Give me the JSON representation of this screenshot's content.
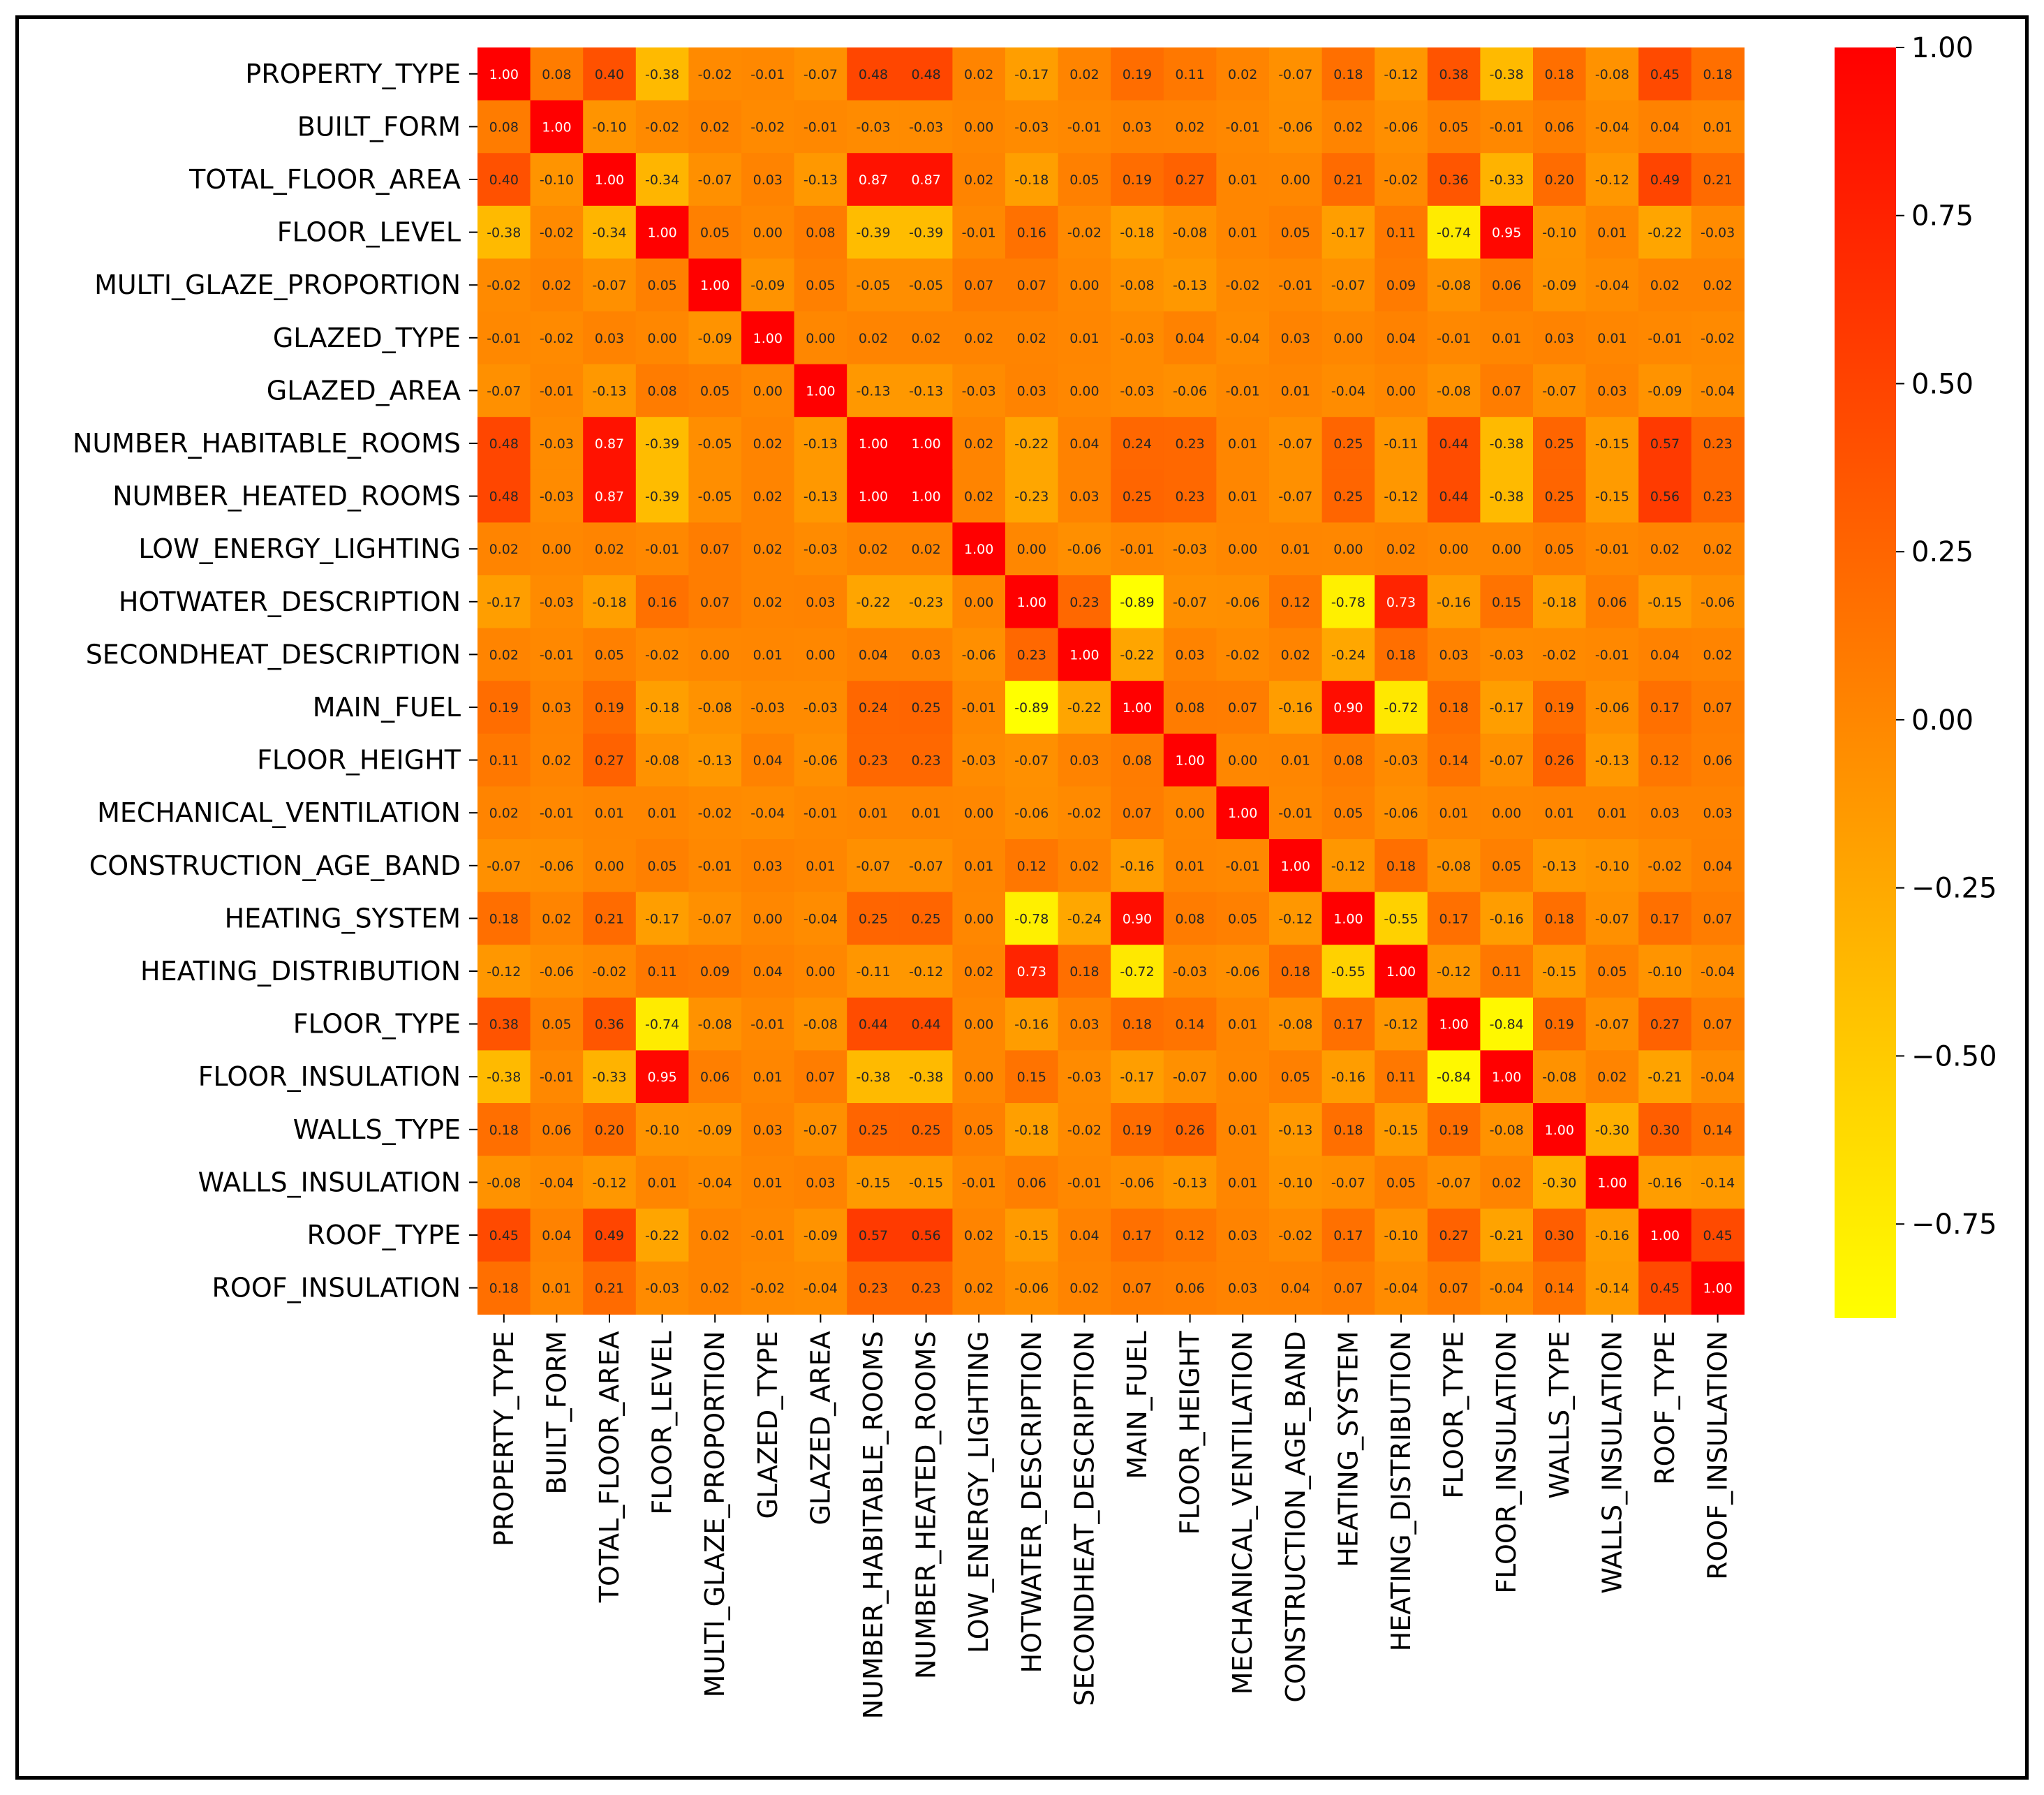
{
  "chart_data": {
    "type": "heatmap",
    "title": "",
    "xlabel": "",
    "ylabel": "",
    "labels": [
      "PROPERTY_TYPE",
      "BUILT_FORM",
      "TOTAL_FLOOR_AREA",
      "FLOOR_LEVEL",
      "MULTI_GLAZE_PROPORTION",
      "GLAZED_TYPE",
      "GLAZED_AREA",
      "NUMBER_HABITABLE_ROOMS",
      "NUMBER_HEATED_ROOMS",
      "LOW_ENERGY_LIGHTING",
      "HOTWATER_DESCRIPTION",
      "SECONDHEAT_DESCRIPTION",
      "MAIN_FUEL",
      "FLOOR_HEIGHT",
      "MECHANICAL_VENTILATION",
      "CONSTRUCTION_AGE_BAND",
      "HEATING_SYSTEM",
      "HEATING_DISTRIBUTION",
      "FLOOR_TYPE",
      "FLOOR_INSULATION",
      "WALLS_TYPE",
      "WALLS_INSULATION",
      "ROOF_TYPE",
      "ROOF_INSULATION"
    ],
    "values": [
      [
        1.0,
        0.08,
        0.4,
        -0.38,
        -0.02,
        -0.01,
        -0.07,
        0.48,
        0.48,
        0.02,
        -0.17,
        0.02,
        0.19,
        0.11,
        0.02,
        -0.07,
        0.18,
        -0.12,
        0.38,
        -0.38,
        0.18,
        -0.08,
        0.45,
        0.18
      ],
      [
        0.08,
        1.0,
        -0.1,
        -0.02,
        0.02,
        -0.02,
        -0.01,
        -0.03,
        -0.03,
        0.0,
        -0.03,
        -0.01,
        0.03,
        0.02,
        -0.01,
        -0.06,
        0.02,
        -0.06,
        0.05,
        -0.01,
        0.06,
        -0.04,
        0.04,
        0.01
      ],
      [
        0.4,
        -0.1,
        1.0,
        -0.34,
        -0.07,
        0.03,
        -0.13,
        0.87,
        0.87,
        0.02,
        -0.18,
        0.05,
        0.19,
        0.27,
        0.01,
        0.0,
        0.21,
        -0.02,
        0.36,
        -0.33,
        0.2,
        -0.12,
        0.49,
        0.21
      ],
      [
        -0.38,
        -0.02,
        -0.34,
        1.0,
        0.05,
        0.0,
        0.08,
        -0.39,
        -0.39,
        -0.01,
        0.16,
        -0.02,
        -0.18,
        -0.08,
        0.01,
        0.05,
        -0.17,
        0.11,
        -0.74,
        0.95,
        -0.1,
        0.01,
        -0.22,
        -0.03
      ],
      [
        -0.02,
        0.02,
        -0.07,
        0.05,
        1.0,
        -0.09,
        0.05,
        -0.05,
        -0.05,
        0.07,
        0.07,
        0.0,
        -0.08,
        -0.13,
        -0.02,
        -0.01,
        -0.07,
        0.09,
        -0.08,
        0.06,
        -0.09,
        -0.04,
        0.02,
        0.02
      ],
      [
        -0.01,
        -0.02,
        0.03,
        0.0,
        -0.09,
        1.0,
        -0.0,
        0.02,
        0.02,
        0.02,
        0.02,
        0.01,
        -0.03,
        0.04,
        -0.04,
        0.03,
        -0.0,
        0.04,
        -0.01,
        0.01,
        0.03,
        0.01,
        -0.01,
        -0.02
      ],
      [
        -0.07,
        -0.01,
        -0.13,
        0.08,
        0.05,
        -0.0,
        1.0,
        -0.13,
        -0.13,
        -0.03,
        0.03,
        -0.0,
        -0.03,
        -0.06,
        -0.01,
        0.01,
        -0.04,
        -0.0,
        -0.08,
        0.07,
        -0.07,
        0.03,
        -0.09,
        -0.04
      ],
      [
        0.48,
        -0.03,
        0.87,
        -0.39,
        -0.05,
        0.02,
        -0.13,
        1.0,
        1.0,
        0.02,
        -0.22,
        0.04,
        0.24,
        0.23,
        0.01,
        -0.07,
        0.25,
        -0.11,
        0.44,
        -0.38,
        0.25,
        -0.15,
        0.57,
        0.23
      ],
      [
        0.48,
        -0.03,
        0.87,
        -0.39,
        -0.05,
        0.02,
        -0.13,
        1.0,
        1.0,
        0.02,
        -0.23,
        0.03,
        0.25,
        0.23,
        0.01,
        -0.07,
        0.25,
        -0.12,
        0.44,
        -0.38,
        0.25,
        -0.15,
        0.56,
        0.23
      ],
      [
        0.02,
        0.0,
        0.02,
        -0.01,
        0.07,
        0.02,
        -0.03,
        0.02,
        0.02,
        1.0,
        -0.0,
        -0.06,
        -0.01,
        -0.03,
        0.0,
        0.01,
        0.0,
        0.02,
        0.0,
        0.0,
        0.05,
        -0.01,
        0.02,
        0.02
      ],
      [
        -0.17,
        -0.03,
        -0.18,
        0.16,
        0.07,
        0.02,
        0.03,
        -0.22,
        -0.23,
        -0.0,
        1.0,
        0.23,
        -0.89,
        -0.07,
        -0.06,
        0.12,
        -0.78,
        0.73,
        -0.16,
        0.15,
        -0.18,
        0.06,
        -0.15,
        -0.06
      ],
      [
        0.02,
        -0.01,
        0.05,
        -0.02,
        0.0,
        0.01,
        -0.0,
        0.04,
        0.03,
        -0.06,
        0.23,
        1.0,
        -0.22,
        0.03,
        -0.02,
        0.02,
        -0.24,
        0.18,
        0.03,
        -0.03,
        -0.02,
        -0.01,
        0.04,
        0.02
      ],
      [
        0.19,
        0.03,
        0.19,
        -0.18,
        -0.08,
        -0.03,
        -0.03,
        0.24,
        0.25,
        -0.01,
        -0.89,
        -0.22,
        1.0,
        0.08,
        0.07,
        -0.16,
        0.9,
        -0.72,
        0.18,
        -0.17,
        0.19,
        -0.06,
        0.17,
        0.07
      ],
      [
        0.11,
        0.02,
        0.27,
        -0.08,
        -0.13,
        0.04,
        -0.06,
        0.23,
        0.23,
        -0.03,
        -0.07,
        0.03,
        0.08,
        1.0,
        -0.0,
        0.01,
        0.08,
        -0.03,
        0.14,
        -0.07,
        0.26,
        -0.13,
        0.12,
        0.06
      ],
      [
        0.02,
        -0.01,
        0.01,
        0.01,
        -0.02,
        -0.04,
        -0.01,
        0.01,
        0.01,
        0.0,
        -0.06,
        -0.02,
        0.07,
        -0.0,
        1.0,
        -0.01,
        0.05,
        -0.06,
        0.01,
        0.0,
        0.01,
        0.01,
        0.03,
        0.03
      ],
      [
        -0.07,
        -0.06,
        0.0,
        0.05,
        -0.01,
        0.03,
        0.01,
        -0.07,
        -0.07,
        0.01,
        0.12,
        0.02,
        -0.16,
        0.01,
        -0.01,
        1.0,
        -0.12,
        0.18,
        -0.08,
        0.05,
        -0.13,
        -0.1,
        -0.02,
        0.04
      ],
      [
        0.18,
        0.02,
        0.21,
        -0.17,
        -0.07,
        -0.0,
        -0.04,
        0.25,
        0.25,
        0.0,
        -0.78,
        -0.24,
        0.9,
        0.08,
        0.05,
        -0.12,
        1.0,
        -0.55,
        0.17,
        -0.16,
        0.18,
        -0.07,
        0.17,
        0.07
      ],
      [
        -0.12,
        -0.06,
        -0.02,
        0.11,
        0.09,
        0.04,
        -0.0,
        -0.11,
        -0.12,
        0.02,
        0.73,
        0.18,
        -0.72,
        -0.03,
        -0.06,
        0.18,
        -0.55,
        1.0,
        -0.12,
        0.11,
        -0.15,
        0.05,
        -0.1,
        -0.04
      ],
      [
        0.38,
        0.05,
        0.36,
        -0.74,
        -0.08,
        -0.01,
        -0.08,
        0.44,
        0.44,
        0.0,
        -0.16,
        0.03,
        0.18,
        0.14,
        0.01,
        -0.08,
        0.17,
        -0.12,
        1.0,
        -0.84,
        0.19,
        -0.07,
        0.27,
        0.07
      ],
      [
        -0.38,
        -0.01,
        -0.33,
        0.95,
        0.06,
        0.01,
        0.07,
        -0.38,
        -0.38,
        0.0,
        0.15,
        -0.03,
        -0.17,
        -0.07,
        0.0,
        0.05,
        -0.16,
        0.11,
        -0.84,
        1.0,
        -0.08,
        0.02,
        -0.21,
        -0.04
      ],
      [
        0.18,
        0.06,
        0.2,
        -0.1,
        -0.09,
        0.03,
        -0.07,
        0.25,
        0.25,
        0.05,
        -0.18,
        -0.02,
        0.19,
        0.26,
        0.01,
        -0.13,
        0.18,
        -0.15,
        0.19,
        -0.08,
        1.0,
        -0.3,
        0.3,
        0.14
      ],
      [
        -0.08,
        -0.04,
        -0.12,
        0.01,
        -0.04,
        0.01,
        0.03,
        -0.15,
        -0.15,
        -0.01,
        0.06,
        -0.01,
        -0.06,
        -0.13,
        0.01,
        -0.1,
        -0.07,
        0.05,
        -0.07,
        0.02,
        -0.3,
        1.0,
        -0.16,
        -0.14
      ],
      [
        0.45,
        0.04,
        0.49,
        -0.22,
        0.02,
        -0.01,
        -0.09,
        0.57,
        0.56,
        0.02,
        -0.15,
        0.04,
        0.17,
        0.12,
        0.03,
        -0.02,
        0.17,
        -0.1,
        0.27,
        -0.21,
        0.3,
        -0.16,
        1.0,
        0.45
      ],
      [
        0.18,
        0.01,
        0.21,
        -0.03,
        0.02,
        -0.02,
        -0.04,
        0.23,
        0.23,
        0.02,
        -0.06,
        0.02,
        0.07,
        0.06,
        0.03,
        0.04,
        0.07,
        -0.04,
        0.07,
        -0.04,
        0.14,
        -0.14,
        0.45,
        1.0
      ]
    ],
    "value_range": [
      -0.89,
      1.0
    ],
    "colormap": "autumn_r",
    "colormap_low_color": "#ffff00",
    "colormap_high_color": "#ff0000",
    "colorbar_ticks": [
      "1.00",
      "0.75",
      "0.50",
      "0.25",
      "0.00",
      "−0.25",
      "−0.50",
      "−0.75"
    ],
    "colorbar_tick_values": [
      1.0,
      0.75,
      0.5,
      0.25,
      0.0,
      -0.25,
      -0.5,
      -0.75
    ],
    "grid": false,
    "legend": "colorbar-right"
  }
}
